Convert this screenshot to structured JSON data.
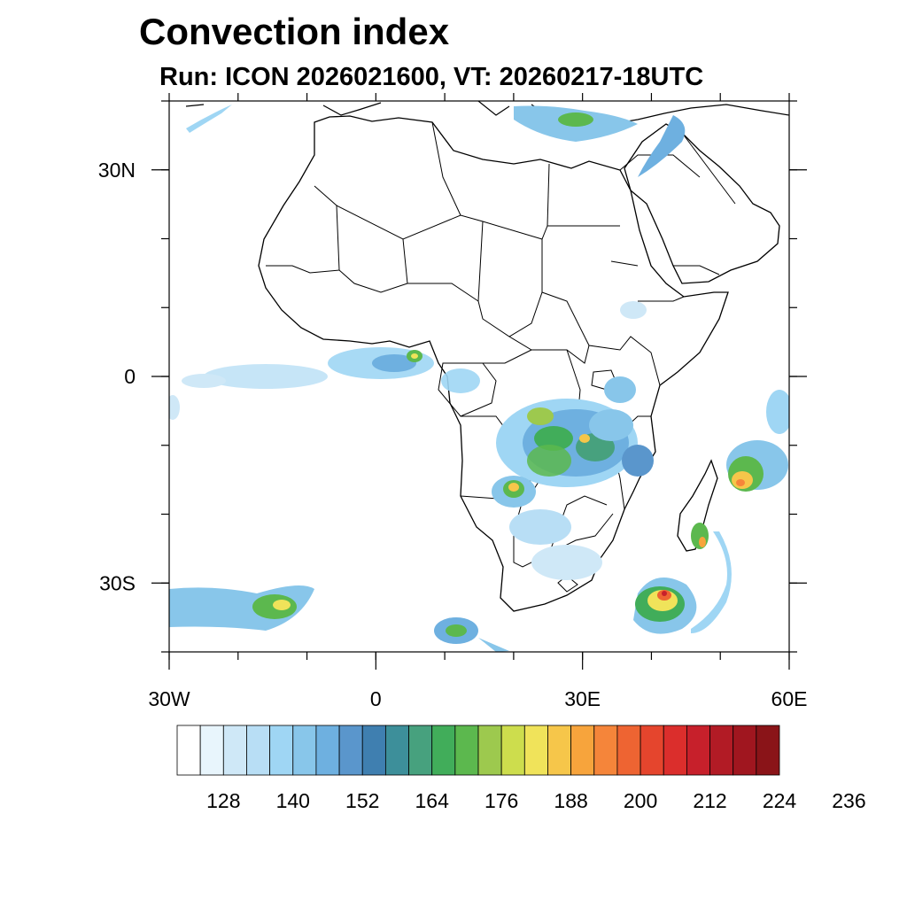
{
  "title": "Convection index",
  "subtitle": "Run: ICON 2026021600,  VT: 20260217-18UTC",
  "map": {
    "lon_range": [
      -30,
      60
    ],
    "lat_range": [
      -40,
      40
    ],
    "y_ticks": [
      {
        "lat": 30,
        "label": "30N"
      },
      {
        "lat": 0,
        "label": "0"
      },
      {
        "lat": -30,
        "label": "30S"
      }
    ],
    "x_ticks": [
      {
        "lon": -30,
        "label": "30W"
      },
      {
        "lon": 0,
        "label": "0"
      },
      {
        "lon": 30,
        "label": "30E"
      },
      {
        "lon": 60,
        "label": "60E"
      }
    ],
    "land_fill": "#ffffff",
    "coast_color": "#000000"
  },
  "colorbar": {
    "colors": [
      "#ffffff",
      "#e8f5fc",
      "#cfe8f7",
      "#b8def5",
      "#9fd6f4",
      "#88c6ea",
      "#6eb0e0",
      "#5a96cc",
      "#3f7fb0",
      "#3d8f9a",
      "#47a17e",
      "#41ad5a",
      "#5cb84e",
      "#9dc94e",
      "#cddd4d",
      "#f0e35a",
      "#f6c64a",
      "#f7a43c",
      "#f5853a",
      "#ee6432",
      "#e5452d",
      "#db2e2c",
      "#c7202b",
      "#b21b25",
      "#a0161f",
      "#8a1418"
    ],
    "labels": [
      "128",
      "140",
      "152",
      "164",
      "176",
      "188",
      "200",
      "212",
      "224",
      "236"
    ]
  }
}
